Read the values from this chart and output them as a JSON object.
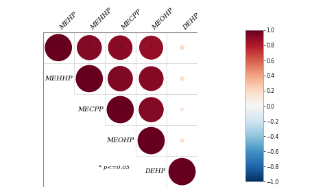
{
  "variables": [
    "MEHP",
    "MEHHP",
    "MECPP",
    "MEOHP",
    "DEHP"
  ],
  "correlations": [
    [
      1.0,
      0.92,
      0.9,
      0.88,
      0.18
    ],
    [
      0.92,
      1.0,
      0.93,
      0.91,
      0.17
    ],
    [
      0.9,
      0.93,
      1.0,
      0.92,
      0.14
    ],
    [
      0.88,
      0.91,
      0.92,
      1.0,
      0.16
    ],
    [
      0.18,
      0.17,
      0.14,
      0.16,
      1.0
    ]
  ],
  "significant": [
    [
      true,
      true,
      true,
      true,
      false
    ],
    [
      true,
      true,
      true,
      true,
      false
    ],
    [
      true,
      true,
      true,
      true,
      false
    ],
    [
      true,
      true,
      true,
      true,
      false
    ],
    [
      false,
      false,
      false,
      false,
      true
    ]
  ],
  "annotation": "* p<=0.05",
  "colorbar_ticks": [
    1,
    0.8,
    0.6,
    0.4,
    0.2,
    0,
    -0.2,
    -0.4,
    -0.6,
    -0.8,
    -1
  ],
  "label_fontsize": 7.0,
  "annot_fontsize": 5.5,
  "row_labels": {
    "1": "MEHHP",
    "2": "MECPP",
    "3": "MEOHP",
    "4": "DEHP"
  }
}
